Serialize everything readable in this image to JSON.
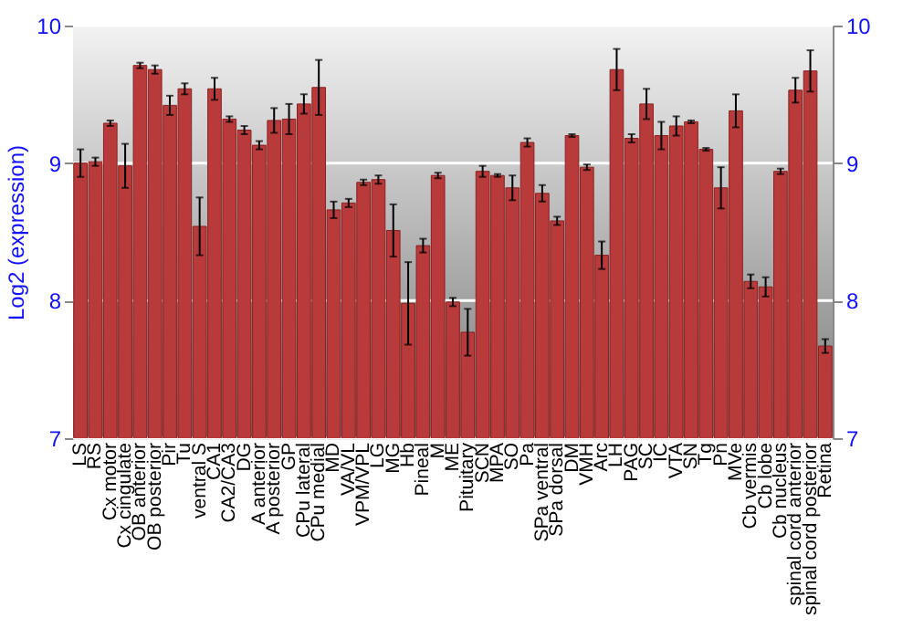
{
  "chart_data": {
    "type": "bar",
    "ylabel": "Log2 (expression)",
    "categories": [
      "LS",
      "RS",
      "Cx motor",
      "Cx cingulate",
      "OB anterior",
      "OB posterior",
      "Pir",
      "Tu",
      "ventral S",
      "CA1",
      "CA2/CA3",
      "DG",
      "A anterior",
      "A posterior",
      "GP",
      "CPu lateral",
      "CPu medial",
      "MD",
      "VA/VL",
      "VPM/VPL",
      "LG",
      "MG",
      "Hb",
      "Pineal",
      "M",
      "ME",
      "Pituitary",
      "SCN",
      "MPA",
      "SO",
      "Pa",
      "SPa ventral",
      "SPa dorsal",
      "DM",
      "VMH",
      "Arc",
      "LH",
      "PAG",
      "SC",
      "IC",
      "VTA",
      "SN",
      "Tg",
      "Pn",
      "MVe",
      "Cb vermis",
      "Cb lobe",
      "Cb nucleus",
      "spinal cord anterior",
      "spinal cord posterior",
      "Retina"
    ],
    "values": [
      9.0,
      9.01,
      9.29,
      8.98,
      9.71,
      9.68,
      9.42,
      9.54,
      8.54,
      9.54,
      9.32,
      9.24,
      9.13,
      9.31,
      9.32,
      9.43,
      9.55,
      8.66,
      8.71,
      8.86,
      8.88,
      8.51,
      7.98,
      8.4,
      8.91,
      7.99,
      7.77,
      8.94,
      8.91,
      8.82,
      9.15,
      8.78,
      8.58,
      9.2,
      8.97,
      8.33,
      9.68,
      9.18,
      9.43,
      9.2,
      9.27,
      9.3,
      9.1,
      8.82,
      9.38,
      8.14,
      8.1,
      8.94,
      9.53,
      9.67,
      7.67
    ],
    "errors": [
      0.1,
      0.03,
      0.02,
      0.16,
      0.02,
      0.03,
      0.07,
      0.04,
      0.21,
      0.08,
      0.02,
      0.03,
      0.03,
      0.09,
      0.11,
      0.07,
      0.2,
      0.06,
      0.03,
      0.02,
      0.03,
      0.19,
      0.3,
      0.05,
      0.02,
      0.03,
      0.17,
      0.04,
      0.01,
      0.09,
      0.03,
      0.06,
      0.03,
      0.01,
      0.02,
      0.1,
      0.15,
      0.03,
      0.11,
      0.1,
      0.07,
      0.01,
      0.01,
      0.15,
      0.12,
      0.05,
      0.07,
      0.02,
      0.09,
      0.15,
      0.05
    ],
    "color": "#b83a3a",
    "ylim": [
      7,
      10
    ],
    "yticks": [
      7,
      8,
      9,
      10
    ],
    "y2lim": [
      7,
      10
    ],
    "y2ticks": [
      7,
      8,
      9,
      10
    ],
    "grid": "y"
  }
}
